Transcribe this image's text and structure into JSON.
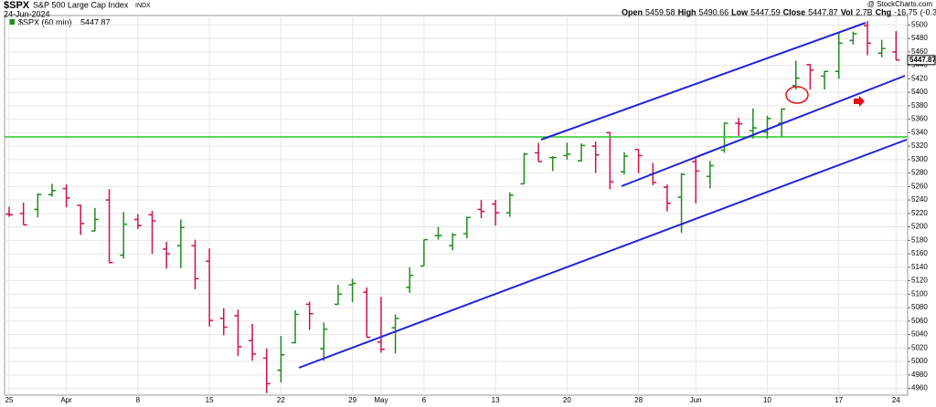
{
  "header": {
    "symbol": "$SPX",
    "name": "S&P 500 Large Cap Index",
    "exchange": "INDX",
    "date": "24-Jun-2024",
    "source": "@ StockCharts.com"
  },
  "quote": {
    "open_label": "Open",
    "open": 5459.58,
    "high_label": "High",
    "high": 5490.66,
    "low_label": "Low",
    "low": 5447.59,
    "close_label": "Close",
    "close": 5447.87,
    "vol_label": "Vol",
    "vol": "2.7B",
    "chg_label": "Chg",
    "chg": -16.75,
    "chg_pct": "(-0.31%)"
  },
  "chart_data": {
    "type": "ohlc",
    "legend": "$SPX (60 min)",
    "last_price": 5447.87,
    "up_color": "#1f8a1f",
    "down_color": "#d0104c",
    "grid": true,
    "categories": [
      "25",
      null,
      null,
      null,
      "Apr",
      null,
      null,
      null,
      null,
      "8",
      null,
      null,
      null,
      null,
      "15",
      null,
      null,
      null,
      null,
      "22",
      null,
      null,
      null,
      null,
      "29",
      null,
      "May",
      null,
      null,
      "6",
      null,
      null,
      null,
      null,
      "13",
      null,
      null,
      null,
      null,
      "20",
      null,
      null,
      null,
      null,
      "28",
      null,
      null,
      null,
      "Jun",
      null,
      null,
      null,
      null,
      "10",
      null,
      null,
      null,
      null,
      "17",
      null,
      null,
      null,
      "24"
    ],
    "open": [
      5219,
      5220,
      5226,
      5248,
      5257,
      5232,
      5194,
      5240,
      5158,
      5211,
      5218,
      5167,
      5172,
      5172,
      5149,
      5064,
      5068,
      5031,
      5005,
      4987,
      5028,
      5085,
      5019,
      5085,
      5114,
      5103,
      5029,
      5050,
      5110,
      5142,
      5187,
      5172,
      5190,
      5226,
      5234,
      5221,
      5264,
      5310,
      5303,
      5306,
      5298,
      5320,
      5340,
      5282,
      5315,
      5278,
      5259,
      5244,
      5297,
      5275,
      5314,
      5354,
      5343,
      5341,
      5354,
      5410,
      5441,
      5424,
      5431,
      5477,
      5499,
      5458,
      5460
    ],
    "high": [
      5230,
      5236,
      5250,
      5264,
      5263,
      5233,
      5228,
      5256,
      5222,
      5219,
      5224,
      5178,
      5211,
      5181,
      5168,
      5079,
      5077,
      5056,
      5019,
      5038,
      5076,
      5089,
      5058,
      5114,
      5123,
      5110,
      5096,
      5070,
      5140,
      5181,
      5200,
      5191,
      5215,
      5240,
      5240,
      5251,
      5310,
      5325,
      5305,
      5325,
      5324,
      5327,
      5341,
      5311,
      5315,
      5295,
      5263,
      5280,
      5302,
      5298,
      5355,
      5362,
      5376,
      5365,
      5376,
      5447,
      5442,
      5432,
      5488,
      5490,
      5506,
      5478,
      5491
    ],
    "low": [
      5215,
      5203,
      5214,
      5245,
      5229,
      5188,
      5194,
      5146,
      5153,
      5197,
      5160,
      5138,
      5139,
      5107,
      5052,
      5039,
      5008,
      5001,
      4953,
      4969,
      5027,
      5047,
      5001,
      5084,
      5088,
      5036,
      5013,
      5012,
      5102,
      5142,
      5181,
      5165,
      5183,
      5213,
      5202,
      5215,
      5264,
      5297,
      5283,
      5300,
      5297,
      5280,
      5256,
      5278,
      5280,
      5262,
      5223,
      5191,
      5235,
      5257,
      5310,
      5335,
      5331,
      5331,
      5333,
      5404,
      5404,
      5404,
      5420,
      5471,
      5455,
      5452,
      5448
    ],
    "close": [
      5218,
      5203,
      5248,
      5254,
      5243,
      5205,
      5211,
      5147,
      5204,
      5202,
      5209,
      5160,
      5199,
      5123,
      5061,
      5051,
      5022,
      5011,
      4967,
      5010,
      5070,
      5071,
      5048,
      5100,
      5116,
      5036,
      5018,
      5064,
      5128,
      5181,
      5187,
      5188,
      5214,
      5223,
      5221,
      5247,
      5308,
      5297,
      5303,
      5308,
      5321,
      5307,
      5267,
      5305,
      5306,
      5266,
      5235,
      5278,
      5283,
      5291,
      5354,
      5353,
      5347,
      5361,
      5375,
      5421,
      5433,
      5431,
      5473,
      5487,
      5473,
      5465,
      5448
    ],
    "ylim": [
      4950,
      5510
    ],
    "yticks": [
      4960,
      4980,
      5000,
      5020,
      5040,
      5060,
      5080,
      5100,
      5120,
      5140,
      5160,
      5180,
      5200,
      5220,
      5240,
      5260,
      5280,
      5300,
      5320,
      5340,
      5360,
      5380,
      5400,
      5420,
      5440,
      5460,
      5480,
      5500
    ]
  }
}
